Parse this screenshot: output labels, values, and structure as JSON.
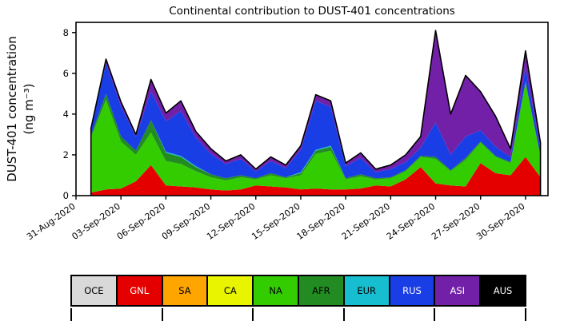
{
  "chart_data": {
    "type": "area",
    "stacked": true,
    "title": "Continental contribution to DUST-401 concentrations",
    "xlabel": "",
    "ylabel": "DUST-401 concentration",
    "ylabel_units": "(ng m⁻³)",
    "ylim": [
      0,
      8.5
    ],
    "yticks": [
      0,
      2,
      4,
      6,
      8
    ],
    "x_extent": [
      0,
      31.5
    ],
    "start_day": 1,
    "tick_days": [
      0,
      3,
      6,
      9,
      12,
      15,
      18,
      21,
      24,
      27,
      30
    ],
    "xtick_labels": [
      "31-Aug-2020",
      "03-Sep-2020",
      "06-Sep-2020",
      "09-Sep-2020",
      "12-Sep-2020",
      "15-Sep-2020",
      "18-Sep-2020",
      "21-Sep-2020",
      "24-Sep-2020",
      "27-Sep-2020",
      "30-Sep-2020"
    ],
    "grid": false,
    "legend_position": "bottom",
    "outline_color": "#000000",
    "x_dates": [
      "01-Sep-2020",
      "02-Sep-2020",
      "03-Sep-2020",
      "04-Sep-2020",
      "05-Sep-2020",
      "06-Sep-2020",
      "07-Sep-2020",
      "08-Sep-2020",
      "09-Sep-2020",
      "10-Sep-2020",
      "11-Sep-2020",
      "12-Sep-2020",
      "13-Sep-2020",
      "14-Sep-2020",
      "15-Sep-2020",
      "16-Sep-2020",
      "17-Sep-2020",
      "18-Sep-2020",
      "19-Sep-2020",
      "20-Sep-2020",
      "21-Sep-2020",
      "22-Sep-2020",
      "23-Sep-2020",
      "24-Sep-2020",
      "25-Sep-2020",
      "26-Sep-2020",
      "27-Sep-2020",
      "28-Sep-2020",
      "29-Sep-2020",
      "30-Sep-2020",
      "01-Oct-2020"
    ],
    "series": [
      {
        "name": "OCE",
        "color": "#d9d9d9",
        "label_color": "#000000",
        "values": [
          0,
          0,
          0,
          0,
          0,
          0,
          0,
          0,
          0,
          0,
          0,
          0,
          0,
          0,
          0,
          0,
          0,
          0,
          0,
          0,
          0,
          0,
          0,
          0,
          0,
          0,
          0,
          0,
          0,
          0,
          0
        ]
      },
      {
        "name": "GNL",
        "color": "#e50000",
        "label_color": "#ffffff",
        "values": [
          0.15,
          0.3,
          0.35,
          0.7,
          1.5,
          0.5,
          0.45,
          0.4,
          0.3,
          0.25,
          0.3,
          0.5,
          0.45,
          0.4,
          0.3,
          0.35,
          0.3,
          0.3,
          0.35,
          0.5,
          0.45,
          0.8,
          1.4,
          0.6,
          0.5,
          0.45,
          1.6,
          1.1,
          1.0,
          1.9,
          0.9
        ]
      },
      {
        "name": "SA",
        "color": "#ffa500",
        "label_color": "#000000",
        "values": [
          0,
          0,
          0,
          0,
          0,
          0,
          0,
          0,
          0,
          0,
          0,
          0,
          0,
          0,
          0,
          0,
          0,
          0,
          0,
          0,
          0,
          0,
          0,
          0,
          0,
          0,
          0,
          0,
          0,
          0,
          0
        ]
      },
      {
        "name": "CA",
        "color": "#e8f400",
        "label_color": "#000000",
        "values": [
          0,
          0,
          0,
          0,
          0,
          0,
          0,
          0,
          0,
          0,
          0,
          0,
          0,
          0,
          0,
          0,
          0,
          0,
          0,
          0,
          0,
          0,
          0,
          0,
          0,
          0,
          0,
          0,
          0,
          0,
          0
        ]
      },
      {
        "name": "NA",
        "color": "#33cc00",
        "label_color": "#000000",
        "values": [
          2.7,
          4.4,
          2.3,
          1.3,
          1.6,
          1.2,
          1.1,
          0.8,
          0.6,
          0.5,
          0.6,
          0.3,
          0.55,
          0.45,
          0.7,
          1.7,
          1.9,
          0.5,
          0.6,
          0.3,
          0.4,
          0.4,
          0.5,
          1.2,
          0.7,
          1.3,
          1.0,
          0.8,
          0.6,
          3.6,
          1.0
        ]
      },
      {
        "name": "AFR",
        "color": "#228b22",
        "label_color": "#000000",
        "values": [
          0.1,
          0.3,
          0.25,
          0.2,
          0.6,
          0.4,
          0.35,
          0.2,
          0.15,
          0.1,
          0.1,
          0.05,
          0.1,
          0.05,
          0.1,
          0.15,
          0.2,
          0.05,
          0.1,
          0.05,
          0.05,
          0.05,
          0.05,
          0.1,
          0.05,
          0.1,
          0.05,
          0.05,
          0.05,
          0.1,
          0.05
        ]
      },
      {
        "name": "EUR",
        "color": "#17becf",
        "label_color": "#000000",
        "values": [
          0,
          0,
          0,
          0,
          0,
          0.05,
          0.05,
          0.05,
          0,
          0,
          0,
          0,
          0,
          0,
          0.05,
          0.05,
          0.05,
          0,
          0,
          0,
          0,
          0,
          0,
          0,
          0,
          0,
          0,
          0,
          0,
          0,
          0
        ]
      },
      {
        "name": "RUS",
        "color": "#1a3ee6",
        "label_color": "#ffffff",
        "values": [
          0.35,
          1.5,
          1.5,
          0.7,
          1.4,
          1.5,
          2.2,
          1.4,
          1.0,
          0.7,
          0.8,
          0.35,
          0.6,
          0.45,
          1.1,
          2.4,
          1.9,
          0.6,
          0.8,
          0.3,
          0.4,
          0.4,
          0.4,
          1.7,
          0.75,
          1.05,
          0.55,
          0.45,
          0.25,
          0.7,
          0.35
        ]
      },
      {
        "name": "ASI",
        "color": "#7220a8",
        "label_color": "#ffffff",
        "values": [
          0.0,
          0.2,
          0.2,
          0.1,
          0.6,
          0.4,
          0.5,
          0.3,
          0.25,
          0.15,
          0.2,
          0.1,
          0.2,
          0.15,
          0.2,
          0.3,
          0.3,
          0.15,
          0.25,
          0.15,
          0.2,
          0.35,
          0.55,
          4.5,
          2.0,
          3.0,
          1.9,
          1.5,
          0.4,
          0.8,
          0.3
        ]
      },
      {
        "name": "AUS",
        "color": "#000000",
        "label_color": "#ffffff",
        "values": [
          0,
          0,
          0,
          0,
          0,
          0,
          0,
          0,
          0,
          0,
          0,
          0,
          0,
          0,
          0,
          0,
          0,
          0,
          0,
          0,
          0,
          0,
          0,
          0,
          0,
          0,
          0,
          0,
          0,
          0,
          0
        ]
      }
    ]
  }
}
